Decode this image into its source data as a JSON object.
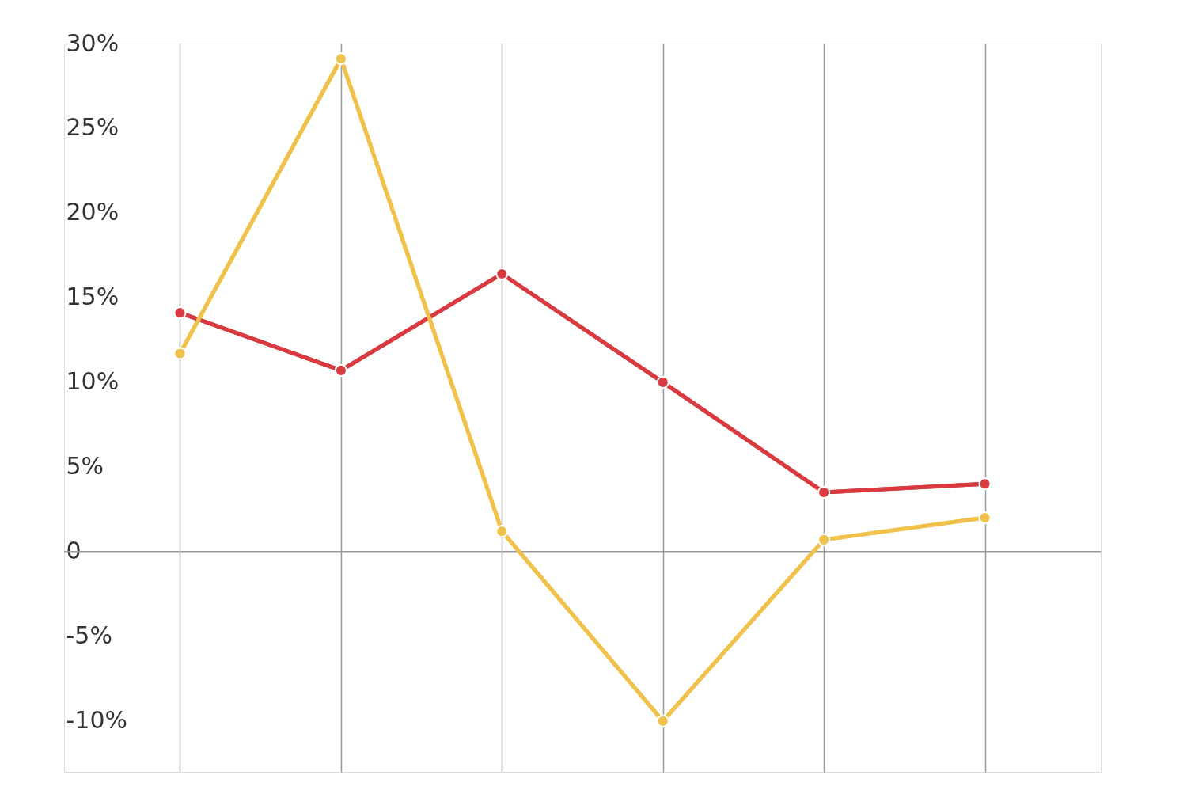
{
  "chart_data": {
    "type": "line",
    "categories": [
      null,
      null,
      null,
      null,
      null,
      null
    ],
    "series": [
      {
        "color": "#d93a3f",
        "values": [
          14.1,
          10.7,
          16.4,
          10.0,
          3.5,
          4.0
        ]
      },
      {
        "color": "#f0c24c",
        "values": [
          11.7,
          29.1,
          1.2,
          -10.0,
          0.7,
          2.0
        ]
      }
    ],
    "ylim": [
      -13,
      30
    ],
    "yticks": [
      {
        "value": -10,
        "label": "-10%"
      },
      {
        "value": -5,
        "label": "-5%"
      },
      0,
      {
        "value": 5,
        "label": "5%"
      },
      {
        "value": 10,
        "label": "10%"
      },
      {
        "value": 15,
        "label": "15%"
      },
      {
        "value": 20,
        "label": "20%"
      },
      {
        "value": 25,
        "label": "25%"
      },
      {
        "value": 30,
        "label": "30%"
      }
    ],
    "ref_lines": [
      {
        "axis": "y",
        "value": 0,
        "color": "#999999"
      }
    ],
    "grid": "x",
    "tick_labels": "y",
    "marker": "circle",
    "line_style": "solid",
    "legend": false
  }
}
